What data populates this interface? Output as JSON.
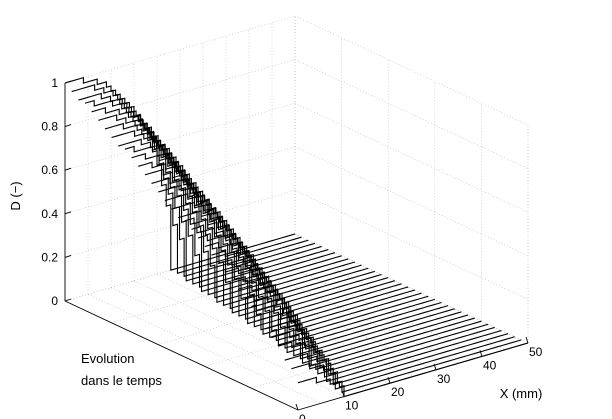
{
  "chart_data": {
    "type": "line",
    "projection": "3d-waterfall",
    "zlabel": "D (−)",
    "xlabel": "X (mm)",
    "time_axis_label": [
      "Evolution",
      "dans le temps"
    ],
    "z_ticks": [
      "0",
      "0.2",
      "0.4",
      "0.6",
      "0.8",
      "1"
    ],
    "x_ticks": [
      "0",
      "10",
      "20",
      "30",
      "40",
      "50"
    ],
    "z_range": [
      0,
      1
    ],
    "x_range": [
      0,
      50
    ],
    "grid": true,
    "series_count": 36,
    "series_description": "Damage profiles D(X) at successive times; D = 1 at X = 0 (front curves lowest, rear curves highest), front extent grows from about 10 mm to about 23 mm over time, D = 0 beyond the front.",
    "front_extent_mm": [
      10,
      23
    ],
    "peak_d": [
      0.12,
      1.0
    ]
  }
}
